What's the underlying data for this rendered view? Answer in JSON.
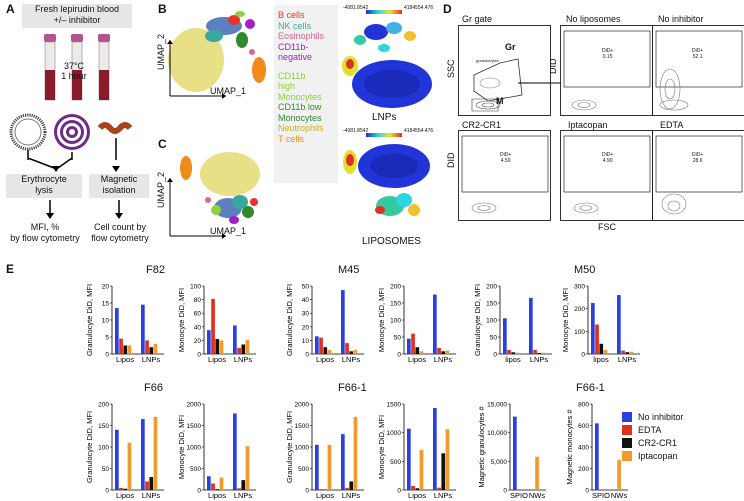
{
  "panel_a": {
    "label": "A",
    "blood_box": [
      "Fresh lepirudin blood",
      "+/– inhibitor"
    ],
    "incubation": [
      "37°C",
      "1 hour"
    ],
    "erythrocyte_box": [
      "Erythrocyte",
      "lysis"
    ],
    "magnetic_box": [
      "Magnetic",
      "isolation"
    ],
    "mfi_text": [
      "MFI, %",
      "by flow cytometry"
    ],
    "count_text": [
      "Cell count by",
      "flow cytometry"
    ]
  },
  "panel_b": {
    "label": "B",
    "axis_y": "UMAP_2",
    "axis_x": "UMAP_1",
    "scale_min": "-4081.8542",
    "scale_max": "4184554.476",
    "map_title": "LNPs"
  },
  "panel_c": {
    "label": "C",
    "axis_y": "UMAP_2",
    "axis_x": "UMAP_1",
    "scale_min": "-4081.8542",
    "scale_max": "4184554.476",
    "map_title": "LIPOSOMES"
  },
  "legend": {
    "items": [
      {
        "label": "B cells",
        "color": "#e8322b"
      },
      {
        "label": "NK cells",
        "color": "#3aa8a0"
      },
      {
        "label": "Eosinophils",
        "color": "#d9668e"
      },
      {
        "label": "CD11b-",
        "color": "#a020c8"
      },
      {
        "label": "negative",
        "color": "#a020c8"
      },
      {
        "label": "CD11b",
        "color": "#8fd13b"
      },
      {
        "label": "high",
        "color": "#8fd13b"
      },
      {
        "label": "Monocytes",
        "color": "#8fd13b"
      },
      {
        "label": "CD11b low",
        "color": "#2f8a2f"
      },
      {
        "label": "Monocytes",
        "color": "#2f8a2f"
      },
      {
        "label": "Neutrophils",
        "color": "#c9b01c"
      },
      {
        "label": "T cells",
        "color": "#f08a1a"
      }
    ]
  },
  "panel_d": {
    "label": "D",
    "axis_ssc": "SSC",
    "axis_did": "DID",
    "axis_fsc": "FSC",
    "plots": [
      {
        "title": "Gr gate",
        "gate_gr": "Gr",
        "gate_m": "M",
        "note": "granulocytes"
      },
      {
        "title": "No liposomes",
        "val": "0.15"
      },
      {
        "title": "No inhibitor",
        "val": "52.1"
      },
      {
        "title": "CR2-CR1",
        "val": "4.59"
      },
      {
        "title": "Iptacopan",
        "val": "4.90"
      },
      {
        "title": "EDTA",
        "val": "28.6"
      }
    ],
    "gate_label": "DiD+"
  },
  "panel_e": {
    "label": "E",
    "group_titles": [
      "F82",
      "M45",
      "M50",
      "F66",
      "F66-1",
      "F66-1"
    ],
    "legend": [
      {
        "label": "No inhibitor",
        "color": "#2a3fe0"
      },
      {
        "label": "EDTA",
        "color": "#e0301e"
      },
      {
        "label": "CR2-CR1",
        "color": "#111111"
      },
      {
        "label": "Iptacopan",
        "color": "#f29a2e"
      }
    ]
  },
  "chart_data": [
    {
      "type": "bar",
      "title": "F82",
      "ylabel": "Granulocyte DiD, MFI",
      "categories": [
        "Lipos",
        "LNPs"
      ],
      "ylim": [
        0,
        20
      ],
      "yticks": [
        0,
        5,
        10,
        15,
        20
      ],
      "series": [
        {
          "name": "No inhibitor",
          "values": [
            13.5,
            14.5
          ]
        },
        {
          "name": "EDTA",
          "values": [
            4.5,
            4
          ]
        },
        {
          "name": "CR2-CR1",
          "values": [
            2.5,
            2
          ]
        },
        {
          "name": "Iptacopan",
          "values": [
            2.5,
            3
          ]
        }
      ]
    },
    {
      "type": "bar",
      "title": "F82",
      "ylabel": "Monocyte DiD, MFI",
      "categories": [
        "Lipos",
        "LNPs"
      ],
      "ylim": [
        0,
        100
      ],
      "yticks": [
        0,
        20,
        40,
        60,
        80,
        100
      ],
      "series": [
        {
          "name": "No inhibitor",
          "values": [
            35,
            42
          ]
        },
        {
          "name": "EDTA",
          "values": [
            81,
            9
          ]
        },
        {
          "name": "CR2-CR1",
          "values": [
            22,
            14
          ]
        },
        {
          "name": "Iptacopan",
          "values": [
            20,
            21
          ]
        }
      ]
    },
    {
      "type": "bar",
      "title": "M45",
      "ylabel": "Granulocyte DiD, MFI",
      "categories": [
        "Lipos",
        "LNPs"
      ],
      "ylim": [
        0,
        50
      ],
      "yticks": [
        0,
        10,
        20,
        30,
        40,
        50
      ],
      "series": [
        {
          "name": "No inhibitor",
          "values": [
            13,
            47
          ]
        },
        {
          "name": "EDTA",
          "values": [
            12,
            8
          ]
        },
        {
          "name": "CR2-CR1",
          "values": [
            5,
            2
          ]
        },
        {
          "name": "Iptacopan",
          "values": [
            3,
            3
          ]
        }
      ]
    },
    {
      "type": "bar",
      "title": "M45",
      "ylabel": "Monocyte DiD, MFI",
      "categories": [
        "Lipos",
        "LNPs"
      ],
      "ylim": [
        0,
        200
      ],
      "yticks": [
        0,
        50,
        100,
        150,
        200
      ],
      "series": [
        {
          "name": "No inhibitor",
          "values": [
            45,
            175
          ]
        },
        {
          "name": "EDTA",
          "values": [
            60,
            18
          ]
        },
        {
          "name": "CR2-CR1",
          "values": [
            20,
            8
          ]
        },
        {
          "name": "Iptacopan",
          "values": [
            8,
            10
          ]
        }
      ]
    },
    {
      "type": "bar",
      "title": "M50",
      "ylabel": "Granulocyte DiD, MFI",
      "categories": [
        "lipos",
        "LNPs"
      ],
      "ylim": [
        0,
        200
      ],
      "yticks": [
        0,
        50,
        100,
        150,
        200
      ],
      "series": [
        {
          "name": "No inhibitor",
          "values": [
            105,
            165
          ]
        },
        {
          "name": "EDTA",
          "values": [
            12,
            12
          ]
        },
        {
          "name": "CR2-CR1",
          "values": [
            5,
            3
          ]
        },
        {
          "name": "Iptacopan",
          "values": [
            4,
            4
          ]
        }
      ]
    },
    {
      "type": "bar",
      "title": "M50",
      "ylabel": "Monocyte DiD, MFI",
      "categories": [
        "lipos",
        "LNPs"
      ],
      "ylim": [
        0,
        300
      ],
      "yticks": [
        0,
        100,
        200,
        300
      ],
      "series": [
        {
          "name": "No inhibitor",
          "values": [
            225,
            260
          ]
        },
        {
          "name": "EDTA",
          "values": [
            130,
            15
          ]
        },
        {
          "name": "CR2-CR1",
          "values": [
            45,
            8
          ]
        },
        {
          "name": "Iptacopan",
          "values": [
            18,
            10
          ]
        }
      ]
    },
    {
      "type": "bar",
      "title": "F66",
      "ylabel": "Granulocyte DiD, MFI",
      "categories": [
        "Lipos",
        "LNPs"
      ],
      "ylim": [
        0,
        200
      ],
      "yticks": [
        0,
        50,
        100,
        150,
        200
      ],
      "series": [
        {
          "name": "No inhibitor",
          "values": [
            140,
            165
          ]
        },
        {
          "name": "EDTA",
          "values": [
            5,
            20
          ]
        },
        {
          "name": "CR2-CR1",
          "values": [
            3,
            30
          ]
        },
        {
          "name": "Iptacopan",
          "values": [
            110,
            170
          ]
        }
      ]
    },
    {
      "type": "bar",
      "title": "F66",
      "ylabel": "Monocyte DiD, MFI",
      "categories": [
        "Lipos",
        "LNPs"
      ],
      "ylim": [
        0,
        2000
      ],
      "yticks": [
        0,
        500,
        1000,
        1500,
        2000
      ],
      "series": [
        {
          "name": "No inhibitor",
          "values": [
            320,
            1780
          ]
        },
        {
          "name": "EDTA",
          "values": [
            150,
            40
          ]
        },
        {
          "name": "CR2-CR1",
          "values": [
            20,
            230
          ]
        },
        {
          "name": "Iptacopan",
          "values": [
            290,
            1020
          ]
        }
      ]
    },
    {
      "type": "bar",
      "title": "F66-1",
      "ylabel": "Granulocyte DiD, MFI",
      "categories": [
        "Lipos",
        "LNPs"
      ],
      "ylim": [
        0,
        2000
      ],
      "yticks": [
        0,
        500,
        1000,
        1500,
        2000
      ],
      "series": [
        {
          "name": "No inhibitor",
          "values": [
            1050,
            1300
          ]
        },
        {
          "name": "EDTA",
          "values": [
            20,
            50
          ]
        },
        {
          "name": "CR2-CR1",
          "values": [
            10,
            200
          ]
        },
        {
          "name": "Iptacopan",
          "values": [
            1050,
            1700
          ]
        }
      ]
    },
    {
      "type": "bar",
      "title": "F66-1",
      "ylabel": "Monocyte DiD, MFI",
      "categories": [
        "Lipos",
        "LNPs"
      ],
      "ylim": [
        0,
        1500
      ],
      "yticks": [
        0,
        500,
        1000,
        1500
      ],
      "series": [
        {
          "name": "No inhibitor",
          "values": [
            1070,
            1430
          ]
        },
        {
          "name": "EDTA",
          "values": [
            70,
            40
          ]
        },
        {
          "name": "CR2-CR1",
          "values": [
            30,
            640
          ]
        },
        {
          "name": "Iptacopan",
          "values": [
            700,
            1060
          ]
        }
      ]
    },
    {
      "type": "bar",
      "title": "F66-1",
      "ylabel": "Magnetic granulocytes #",
      "categories": [
        "SPIO",
        "NWs"
      ],
      "ylim": [
        0,
        15000
      ],
      "yticks": [
        0,
        5000,
        10000,
        15000
      ],
      "yticklabels": [
        "0",
        "5,000",
        "10,000",
        "15,000"
      ],
      "series": [
        {
          "name": "No inhibitor",
          "values": [
            12800,
            0
          ]
        },
        {
          "name": "Iptacopan",
          "values": [
            0,
            5800
          ]
        }
      ]
    },
    {
      "type": "bar",
      "title": "F66-1",
      "ylabel": "Magnetic monocytes #",
      "categories": [
        "SPIO",
        "NWs"
      ],
      "ylim": [
        0,
        800
      ],
      "yticks": [
        0,
        200,
        400,
        600,
        800
      ],
      "series": [
        {
          "name": "No inhibitor",
          "values": [
            620,
            0
          ]
        },
        {
          "name": "Iptacopan",
          "values": [
            0,
            280
          ]
        }
      ]
    }
  ]
}
